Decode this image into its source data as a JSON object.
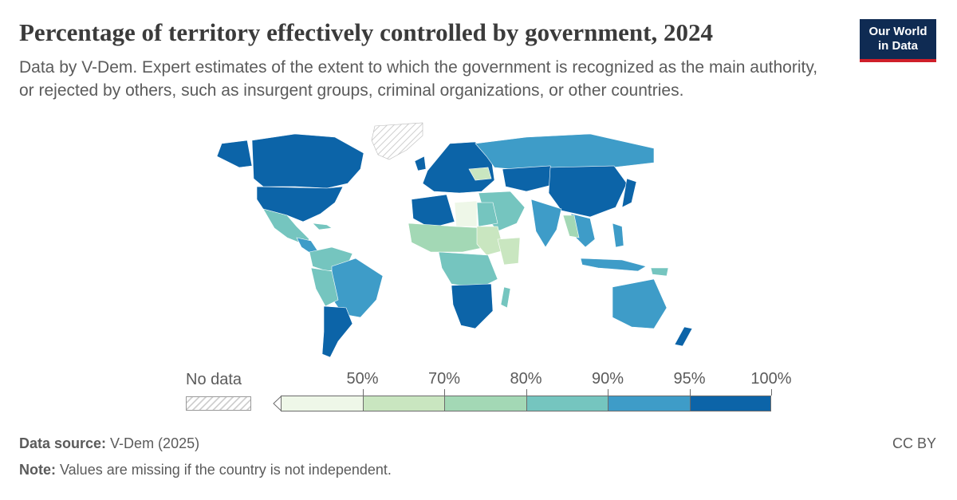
{
  "header": {
    "title": "Percentage of territory effectively controlled by government, 2024",
    "subtitle": "Data by V-Dem. Expert estimates of the extent to which the government is recognized as the main authority, or rejected by others, such as insurgent groups, criminal organizations, or other countries."
  },
  "logo": {
    "line1": "Our World",
    "line2": "in Data",
    "bg_color": "#0f2b53",
    "accent_color": "#cf1f2a"
  },
  "legend": {
    "no_data_label": "No data",
    "ticks": [
      "50%",
      "70%",
      "80%",
      "90%",
      "95%",
      "100%"
    ],
    "colors": [
      "#eef7e8",
      "#c9e6c0",
      "#a3d8b5",
      "#75c5bf",
      "#3e9cc8",
      "#0c64a8"
    ]
  },
  "footer": {
    "source_label": "Data source:",
    "source_value": " V-Dem (2025)",
    "note_label": "Note:",
    "note_value": " Values are missing if the country is not independent.",
    "license": "CC BY"
  }
}
